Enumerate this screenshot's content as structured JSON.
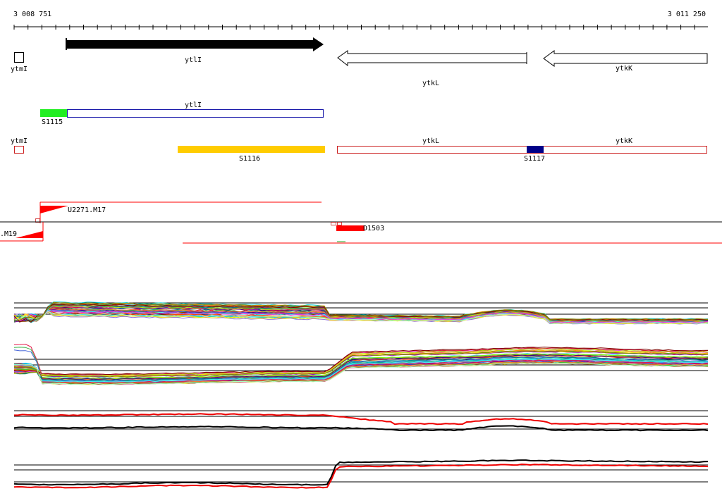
{
  "coordinates": {
    "start": "3 008 751",
    "end": "3 011 250"
  },
  "colors": {
    "gene_fill": "#000000",
    "segment_s1115": "#22ee22",
    "segment_s1116": "#ffcc00",
    "segment_s1117": "#000088",
    "transcript_blue": "#1a1aaa",
    "transcript_red": "#cc2222",
    "tss_red": "#ff0000",
    "trace_black": "#000000",
    "trace_red": "#ee0000"
  },
  "annotation_tracks": {
    "genes": [
      {
        "name": "ytmI",
        "strand": "plus",
        "style": "outline"
      },
      {
        "name": "ytlI",
        "strand": "plus",
        "style": "filled"
      },
      {
        "name": "ytkL",
        "strand": "minus",
        "style": "outline"
      },
      {
        "name": "ytkK",
        "strand": "minus",
        "style": "outline"
      }
    ],
    "segments": [
      {
        "name": "S1115"
      },
      {
        "name": "S1116"
      },
      {
        "name": "S1117"
      }
    ],
    "transcript_labels": {
      "ytlI": "ytlI",
      "ytmI": "ytmI",
      "ytkL": "ytkL",
      "ytkK": "ytkK"
    },
    "features": [
      {
        "name": "U2271.M17"
      },
      {
        "name": ".M19"
      },
      {
        "name": "D1503"
      }
    ]
  },
  "expression_panels": [
    {
      "name": "all-conditions-plus-strand",
      "style": "multicolor"
    },
    {
      "name": "all-conditions-minus-strand",
      "style": "multicolor"
    },
    {
      "name": "selected-plus-strand",
      "style": "black-red"
    },
    {
      "name": "selected-minus-strand",
      "style": "black-red"
    }
  ],
  "palette": [
    "#e6194b",
    "#3cb44b",
    "#4363d8",
    "#f58231",
    "#911eb4",
    "#46f0f0",
    "#f032e6",
    "#bcf60c",
    "#008080",
    "#9a6324",
    "#ffe119",
    "#800000",
    "#aaffc3",
    "#808000",
    "#000075",
    "#808080",
    "#ff69b4",
    "#00ced1",
    "#ff4500",
    "#7fff00",
    "#1e90ff",
    "#daa520",
    "#8b008b",
    "#2e8b57",
    "#dc143c",
    "#00bfff",
    "#9370db",
    "#32cd32",
    "#ff8c00",
    "#4b0082"
  ]
}
